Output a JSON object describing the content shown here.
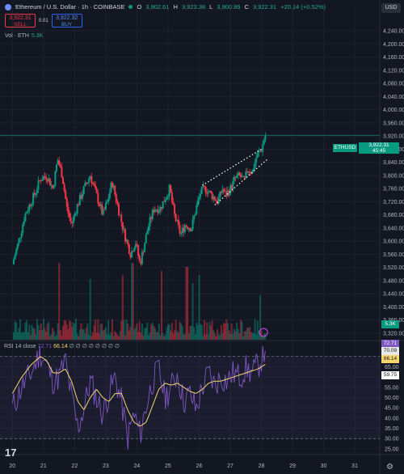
{
  "header": {
    "symbol_title": "Ethereum / U.S. Dollar · 1h · COINBASE",
    "o_label": "O",
    "o_value": "3,902.61",
    "h_label": "H",
    "h_value": "3,923.38",
    "l_label": "L",
    "l_value": "3,900.86",
    "c_label": "C",
    "c_value": "3,922.31",
    "change": "+20.14 (+0.52%)"
  },
  "trade": {
    "sell_price": "3,922.31",
    "sell_label": "SELL",
    "spread": "0.01",
    "buy_price": "3,922.32",
    "buy_label": "BUY"
  },
  "volume_legend": {
    "label": "Vol · ETH",
    "value": "5.3K"
  },
  "rsi_legend": {
    "label": "RSI 14 close",
    "value": "72.71",
    "ma_value": "66.14",
    "empties": "∅ ∅ ∅ ∅ ∅ ∅ ∅ ∅"
  },
  "currency": "USD",
  "last_price_tag": {
    "symbol": "ETHUSD",
    "price": "3,922.31",
    "countdown": "45:45"
  },
  "volume_tag": "5.3K",
  "rsi_tags": [
    {
      "text": "72.71",
      "bg": "#7e57c2",
      "fg": "#ffffff"
    },
    {
      "text": "70.09",
      "bg": "#e8e8e8",
      "fg": "#131722"
    },
    {
      "text": "66.14",
      "bg": "#f5d76e",
      "fg": "#131722"
    },
    {
      "text": "59.75",
      "bg": "#ffffff",
      "fg": "#131722"
    }
  ],
  "logo": "17",
  "colors": {
    "up": "#089981",
    "down": "#f23645",
    "rsi": "#7e57c2",
    "rsi_ma": "#f5d76e",
    "grid": "#1e2230",
    "text": "#b2b5be",
    "bg": "#131722"
  },
  "chart_data": [
    {
      "type": "candlestick",
      "title": "Ethereum / U.S. Dollar · 1h · COINBASE",
      "y_ticks": [
        4240,
        4200,
        4160,
        4120,
        4080,
        4040,
        4000,
        3960,
        3920,
        3880,
        3840,
        3800,
        3760,
        3720,
        3680,
        3640,
        3600,
        3560,
        3520,
        3480,
        3440,
        3400,
        3360,
        3320
      ],
      "y_tick_labels": [
        "4,240.00",
        "4,200.00",
        "4,160.00",
        "4,120.00",
        "4,080.00",
        "4,040.00",
        "4,000.00",
        "3,960.00",
        "3,920.00",
        "3,880.00",
        "3,840.00",
        "3,800.00",
        "3,760.00",
        "3,720.00",
        "3,680.00",
        "3,640.00",
        "3,600.00",
        "3,560.00",
        "3,520.00",
        "3,480.00",
        "3,440.00",
        "3,400.00",
        "3,360.00",
        "3,320.00"
      ],
      "ylim": [
        3300,
        4260
      ],
      "x_ticks": [
        "20",
        "21",
        "22",
        "23",
        "24",
        "25",
        "26",
        "27",
        "28",
        "29",
        "30",
        "31"
      ],
      "close_path_days": [
        20.0,
        20.2,
        20.4,
        20.7,
        20.9,
        21.1,
        21.3,
        21.45,
        21.6,
        21.75,
        21.9,
        22.05,
        22.3,
        22.5,
        22.7,
        22.9,
        23.05,
        23.2,
        23.4,
        23.6,
        23.8,
        23.95,
        24.1,
        24.35,
        24.55,
        24.75,
        24.95,
        25.05,
        25.2,
        25.4,
        25.55,
        25.75,
        25.9,
        26.05,
        26.2,
        26.4,
        26.6,
        26.75,
        26.85,
        27.0,
        27.15,
        27.3,
        27.45,
        27.55,
        27.7,
        27.85,
        28.0,
        28.12
      ],
      "close_path_prices": [
        3530,
        3600,
        3680,
        3740,
        3790,
        3800,
        3760,
        3850,
        3800,
        3700,
        3650,
        3700,
        3760,
        3800,
        3740,
        3680,
        3720,
        3780,
        3700,
        3620,
        3560,
        3600,
        3530,
        3640,
        3700,
        3700,
        3740,
        3760,
        3680,
        3620,
        3650,
        3640,
        3700,
        3750,
        3760,
        3740,
        3720,
        3760,
        3740,
        3760,
        3790,
        3800,
        3780,
        3820,
        3810,
        3860,
        3880,
        3922.31
      ],
      "last_price": 3922.31,
      "trend_channel_upper": [
        [
          26.1,
          3770
        ],
        [
          28.0,
          3880
        ]
      ],
      "trend_channel_lower": [
        [
          26.5,
          3710
        ],
        [
          28.2,
          3850
        ]
      ]
    },
    {
      "type": "bar",
      "title": "Vol · ETH",
      "last_value": "5.3K",
      "volume_spikes_days": [
        21.5,
        22.5,
        23.55,
        23.85,
        24.8,
        25.6,
        25.8,
        26.0,
        27.95
      ],
      "volume_spikes_rel": [
        0.95,
        0.75,
        0.8,
        0.95,
        0.85,
        0.9,
        0.7,
        0.8,
        0.55
      ]
    },
    {
      "type": "line",
      "title": "RSI 14 close",
      "y_ticks": [
        70,
        65,
        60,
        55,
        50,
        45,
        40,
        35,
        30,
        25
      ],
      "ylim": [
        23,
        75
      ],
      "bands": [
        70,
        30
      ],
      "series": [
        {
          "name": "RSI",
          "x": [
            20.0,
            20.3,
            20.6,
            20.9,
            21.1,
            21.3,
            21.5,
            21.7,
            21.9,
            22.1,
            22.3,
            22.5,
            22.7,
            22.9,
            23.1,
            23.3,
            23.5,
            23.7,
            23.9,
            24.1,
            24.3,
            24.5,
            24.7,
            24.9,
            25.1,
            25.3,
            25.5,
            25.7,
            25.9,
            26.1,
            26.3,
            26.5,
            26.7,
            26.9,
            27.1,
            27.3,
            27.5,
            27.7,
            27.9,
            28.12
          ],
          "y": [
            45,
            55,
            62,
            72,
            66,
            58,
            60,
            68,
            50,
            35,
            45,
            58,
            50,
            42,
            52,
            60,
            48,
            30,
            42,
            32,
            46,
            58,
            64,
            50,
            55,
            62,
            48,
            52,
            44,
            55,
            62,
            56,
            60,
            58,
            62,
            60,
            64,
            62,
            66,
            72.71
          ]
        },
        {
          "name": "RSI-based MA",
          "x": [
            20.0,
            20.3,
            20.6,
            20.9,
            21.1,
            21.3,
            21.5,
            21.7,
            21.9,
            22.1,
            22.3,
            22.5,
            22.7,
            22.9,
            23.1,
            23.3,
            23.5,
            23.7,
            23.9,
            24.1,
            24.3,
            24.5,
            24.7,
            24.9,
            25.1,
            25.3,
            25.5,
            25.7,
            25.9,
            26.1,
            26.3,
            26.5,
            26.7,
            26.9,
            27.1,
            27.3,
            27.5,
            27.7,
            27.9,
            28.12
          ],
          "y": [
            52,
            60,
            66,
            70,
            68,
            62,
            62,
            64,
            58,
            48,
            44,
            50,
            54,
            50,
            48,
            52,
            52,
            44,
            38,
            36,
            38,
            46,
            54,
            57,
            56,
            57,
            55,
            53,
            52,
            54,
            57,
            58,
            58,
            59,
            60,
            61,
            62,
            63,
            64,
            66.14
          ]
        }
      ]
    }
  ]
}
